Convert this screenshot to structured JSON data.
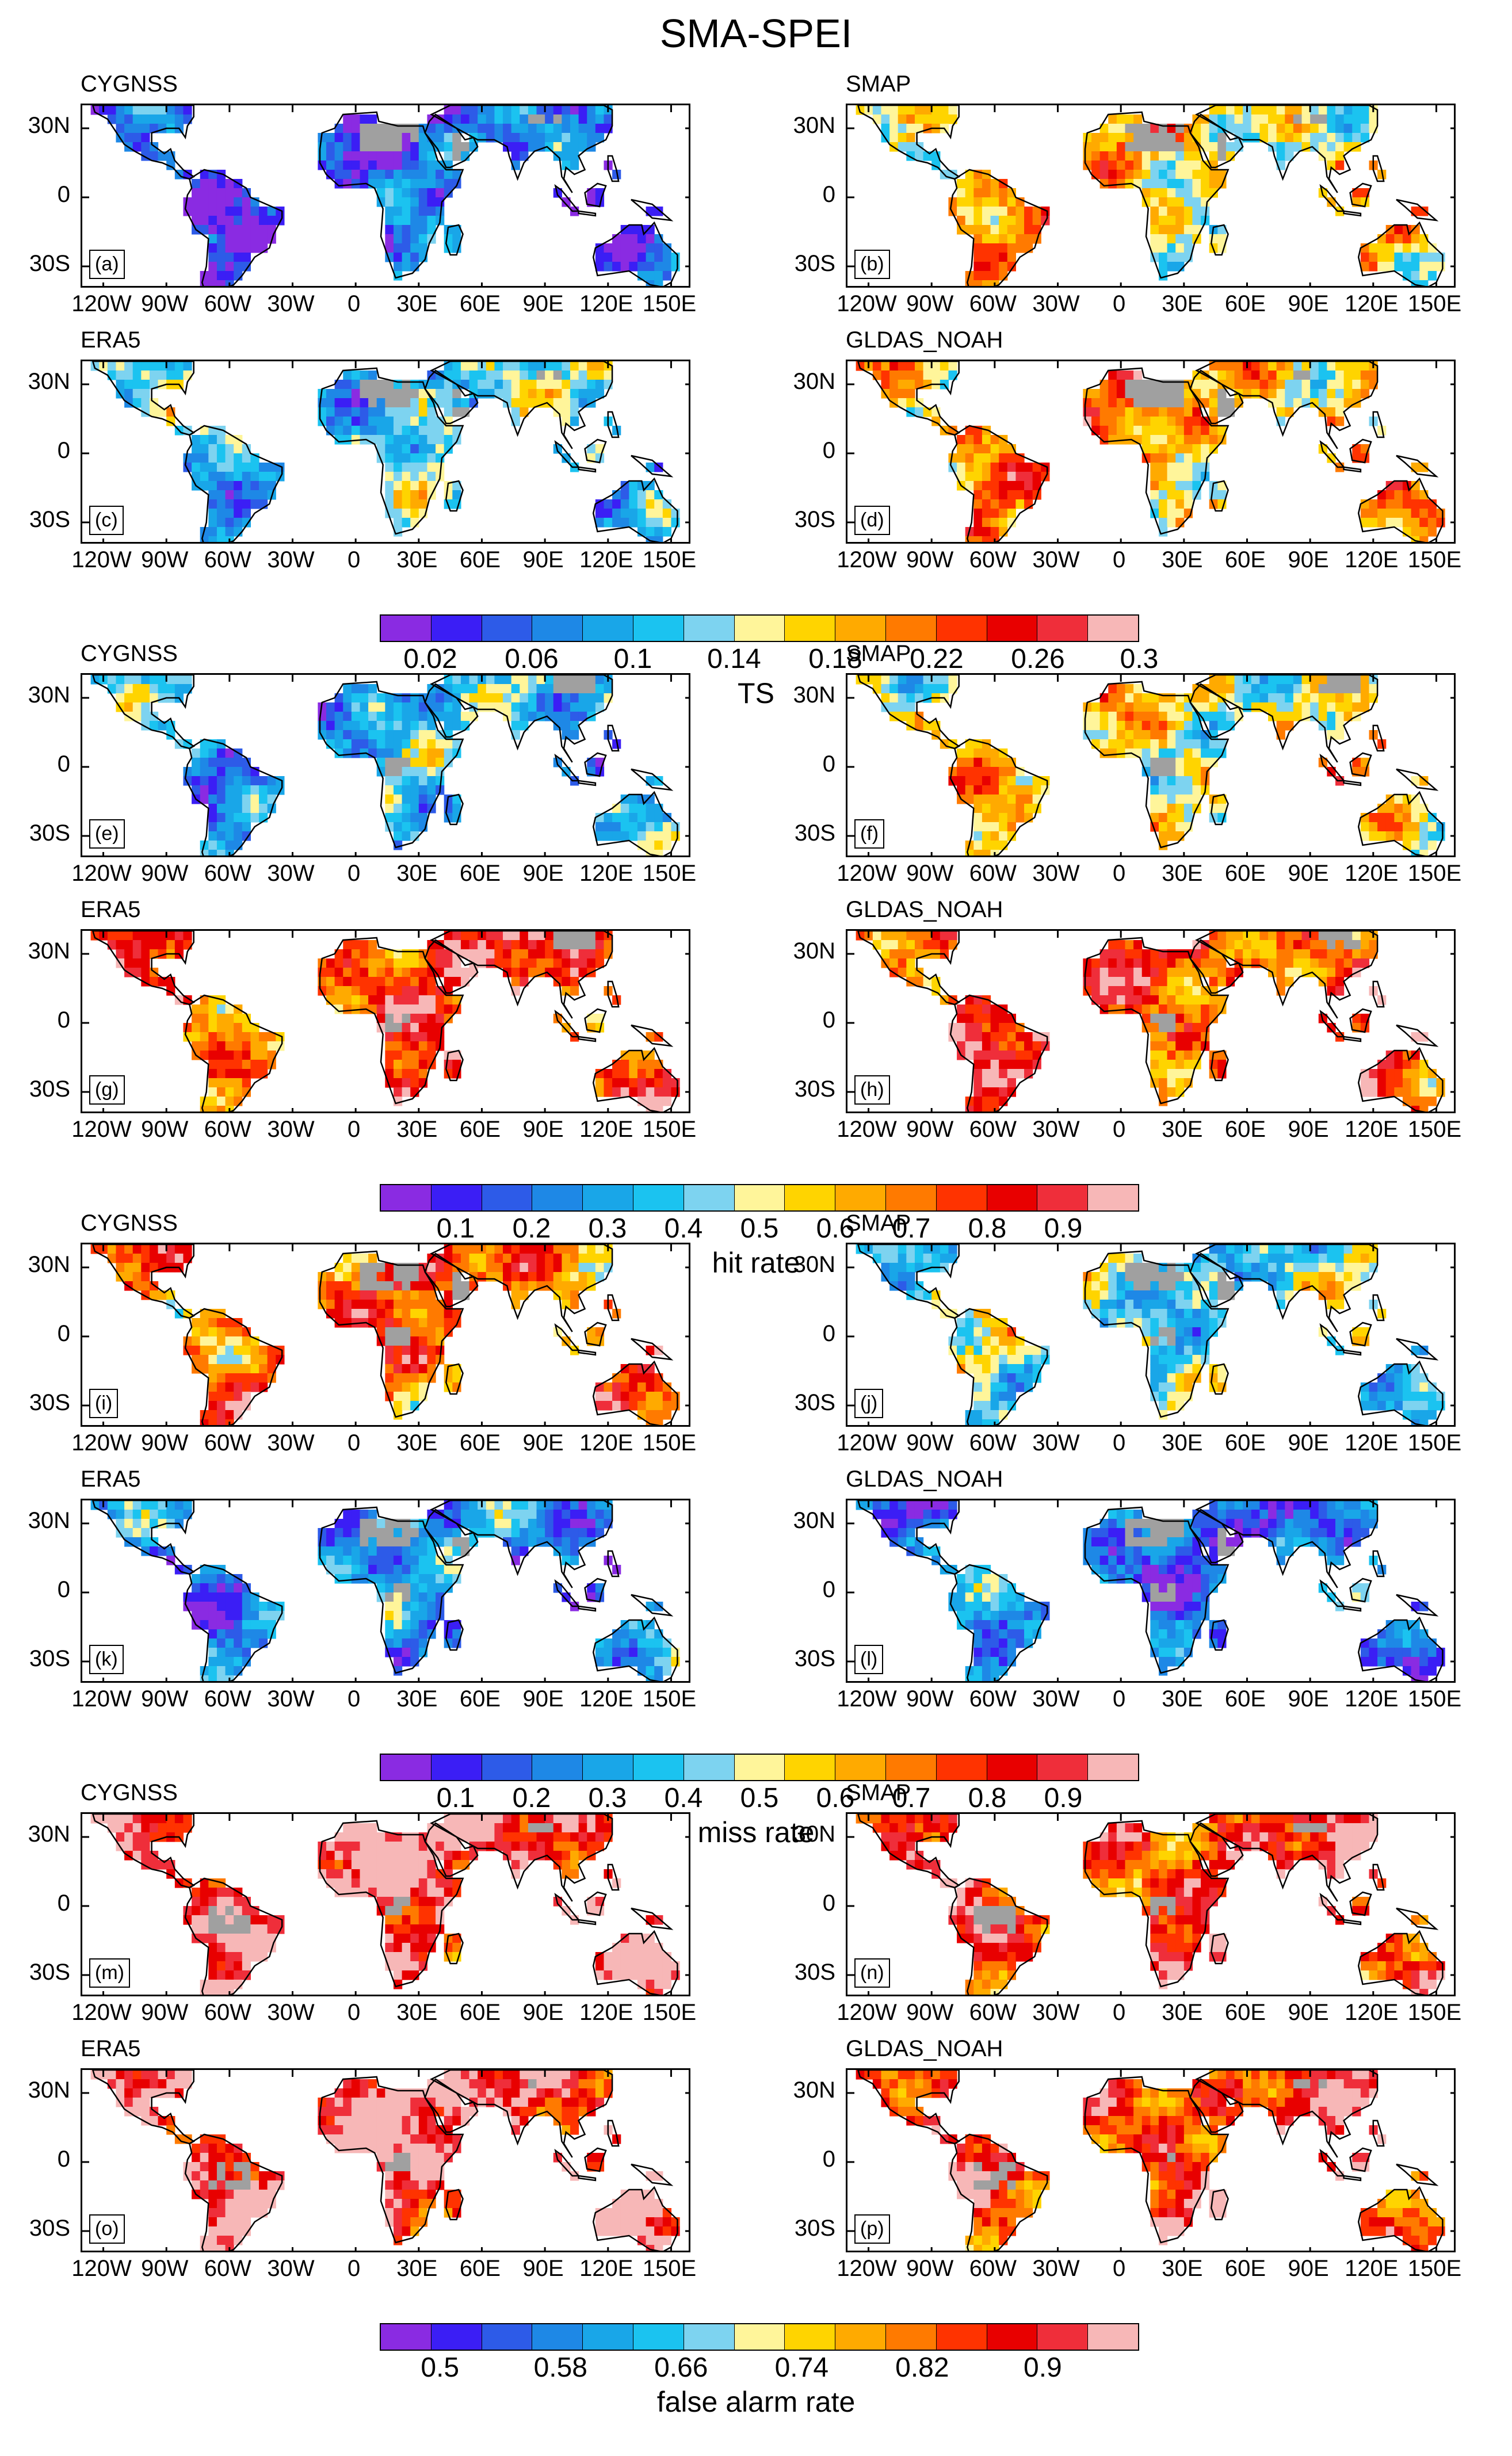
{
  "title": "SMA-SPEI",
  "lat_labels": [
    "30N",
    "0",
    "30S"
  ],
  "lon_labels": [
    "120W",
    "90W",
    "60W",
    "30W",
    "0",
    "30E",
    "60E",
    "90E",
    "120E",
    "150E"
  ],
  "colors": {
    "palette": [
      "#8A2BE2",
      "#3B1EF5",
      "#2D5BE8",
      "#1E88E6",
      "#19A6E8",
      "#1BC3F0",
      "#7DD3F0",
      "#FFF59A",
      "#FFD400",
      "#FFAA00",
      "#FF7A00",
      "#FF3300",
      "#E80000",
      "#EF2E3A",
      "#F7B7B7"
    ],
    "gray": "#A0A0A0"
  },
  "sections": [
    {
      "name": "ts",
      "colorbar_title": "TS",
      "colorbar_ticks": [
        "0.02",
        "0.06",
        "0.1",
        "0.14",
        "0.18",
        "0.22",
        "0.26",
        "0.3"
      ],
      "panels": [
        {
          "title": "CYGNSS",
          "label": "(a)",
          "tone": 2
        },
        {
          "title": "SMAP",
          "label": "(b)",
          "tone": 8
        },
        {
          "title": "ERA5",
          "label": "(c)",
          "tone": 5
        },
        {
          "title": "GLDAS_NOAH",
          "label": "(d)",
          "tone": 9
        }
      ]
    },
    {
      "name": "hit-rate",
      "colorbar_title": "hit rate",
      "colorbar_ticks": [
        "0.1",
        "0.2",
        "0.3",
        "0.4",
        "0.5",
        "0.6",
        "0.7",
        "0.8",
        "0.9"
      ],
      "panels": [
        {
          "title": "CYGNSS",
          "label": "(e)",
          "tone": 4
        },
        {
          "title": "SMAP",
          "label": "(f)",
          "tone": 8
        },
        {
          "title": "ERA5",
          "label": "(g)",
          "tone": 11
        },
        {
          "title": "GLDAS_NOAH",
          "label": "(h)",
          "tone": 11
        }
      ]
    },
    {
      "name": "miss-rate",
      "colorbar_title": "miss rate",
      "colorbar_ticks": [
        "0.1",
        "0.2",
        "0.3",
        "0.4",
        "0.5",
        "0.6",
        "0.7",
        "0.8",
        "0.9"
      ],
      "panels": [
        {
          "title": "CYGNSS",
          "label": "(i)",
          "tone": 10
        },
        {
          "title": "SMAP",
          "label": "(j)",
          "tone": 6
        },
        {
          "title": "ERA5",
          "label": "(k)",
          "tone": 3
        },
        {
          "title": "GLDAS_NOAH",
          "label": "(l)",
          "tone": 3
        }
      ]
    },
    {
      "name": "false-alarm-rate",
      "colorbar_title": "false alarm rate",
      "colorbar_ticks": [
        "0.5",
        "0.58",
        "0.66",
        "0.74",
        "0.82",
        "0.9"
      ],
      "panels": [
        {
          "title": "CYGNSS",
          "label": "(m)",
          "tone": 13
        },
        {
          "title": "SMAP",
          "label": "(n)",
          "tone": 12
        },
        {
          "title": "ERA5",
          "label": "(o)",
          "tone": 13
        },
        {
          "title": "GLDAS_NOAH",
          "label": "(p)",
          "tone": 12
        }
      ]
    }
  ]
}
